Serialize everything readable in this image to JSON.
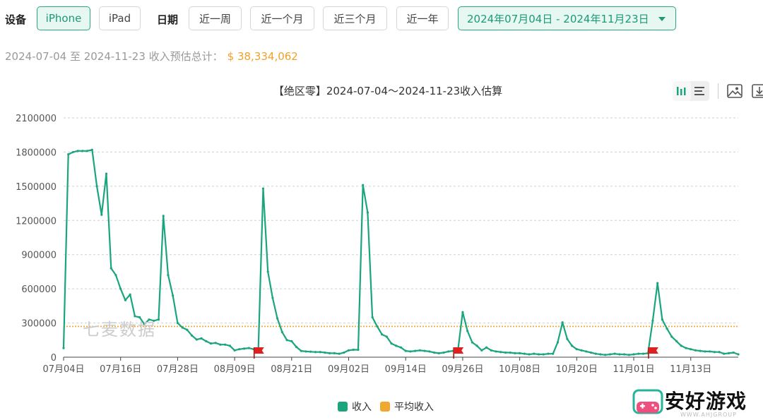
{
  "filters": {
    "device_label": "设备",
    "devices": [
      "iPhone",
      "iPad"
    ],
    "active_device": "iPhone",
    "date_label": "日期",
    "ranges": [
      "近一周",
      "近一个月",
      "近三个月",
      "近一年"
    ],
    "date_range": "2024年07月04日 - 2024年11月23日"
  },
  "summary": {
    "text": "2024-07-04 至 2024-11-23 收入预估总计：",
    "total": "$ 38,334,062"
  },
  "icons": [
    "bar-chart-icon",
    "list-icon",
    "image-icon",
    "download-icon",
    "flag-icon",
    "caret-down-icon"
  ],
  "colors": {
    "accent": "#1aa57f",
    "average": "#f0a830",
    "flag": "#e02020",
    "total": "#f0a12a"
  },
  "watermark": "七麦数据",
  "logo": {
    "text": "安好游戏",
    "sub": "WWW.AHJGROUP"
  },
  "chart_data": {
    "type": "line",
    "title": "【绝区零】2024-07-04～2024-11-23收入估算",
    "xlabel": "",
    "ylabel": "",
    "x_start": "2024-07-04",
    "x_end": "2024-11-23",
    "xticks": [
      "07月04日",
      "07月16日",
      "07月28日",
      "08月09日",
      "08月21日",
      "09月02日",
      "09月14日",
      "09月26日",
      "10月08日",
      "10月20日",
      "11月01日",
      "11月13日"
    ],
    "yticks": [
      "0",
      "300000",
      "600000",
      "900000",
      "1200000",
      "1500000",
      "1800000",
      "2100000"
    ],
    "ylim": [
      0,
      2100000
    ],
    "grid": true,
    "legend_position": "bottom",
    "series": [
      {
        "name": "收入",
        "color": "#1aa57f",
        "points": [
          [
            "2024-07-04",
            80000
          ],
          [
            "2024-07-05",
            1780000
          ],
          [
            "2024-07-06",
            1800000
          ],
          [
            "2024-07-07",
            1810000
          ],
          [
            "2024-07-08",
            1810000
          ],
          [
            "2024-07-09",
            1810000
          ],
          [
            "2024-07-10",
            1820000
          ],
          [
            "2024-07-11",
            1500000
          ],
          [
            "2024-07-12",
            1250000
          ],
          [
            "2024-07-13",
            1610000
          ],
          [
            "2024-07-14",
            780000
          ],
          [
            "2024-07-15",
            720000
          ],
          [
            "2024-07-16",
            600000
          ],
          [
            "2024-07-17",
            500000
          ],
          [
            "2024-07-18",
            550000
          ],
          [
            "2024-07-19",
            360000
          ],
          [
            "2024-07-20",
            350000
          ],
          [
            "2024-07-21",
            290000
          ],
          [
            "2024-07-22",
            330000
          ],
          [
            "2024-07-23",
            320000
          ],
          [
            "2024-07-24",
            330000
          ],
          [
            "2024-07-25",
            1240000
          ],
          [
            "2024-07-26",
            720000
          ],
          [
            "2024-07-27",
            540000
          ],
          [
            "2024-07-28",
            300000
          ],
          [
            "2024-07-29",
            260000
          ],
          [
            "2024-07-30",
            240000
          ],
          [
            "2024-07-31",
            190000
          ],
          [
            "2024-08-01",
            155000
          ],
          [
            "2024-08-02",
            165000
          ],
          [
            "2024-08-03",
            140000
          ],
          [
            "2024-08-04",
            120000
          ],
          [
            "2024-08-05",
            125000
          ],
          [
            "2024-08-06",
            110000
          ],
          [
            "2024-08-07",
            110000
          ],
          [
            "2024-08-08",
            100000
          ],
          [
            "2024-08-09",
            60000
          ],
          [
            "2024-08-10",
            70000
          ],
          [
            "2024-08-11",
            75000
          ],
          [
            "2024-08-12",
            80000
          ],
          [
            "2024-08-13",
            70000
          ],
          [
            "2024-08-14",
            75000
          ],
          [
            "2024-08-15",
            1480000
          ],
          [
            "2024-08-16",
            750000
          ],
          [
            "2024-08-17",
            520000
          ],
          [
            "2024-08-18",
            340000
          ],
          [
            "2024-08-19",
            220000
          ],
          [
            "2024-08-20",
            150000
          ],
          [
            "2024-08-21",
            140000
          ],
          [
            "2024-08-22",
            90000
          ],
          [
            "2024-08-23",
            55000
          ],
          [
            "2024-08-24",
            50000
          ],
          [
            "2024-08-25",
            48000
          ],
          [
            "2024-08-26",
            45000
          ],
          [
            "2024-08-27",
            45000
          ],
          [
            "2024-08-28",
            40000
          ],
          [
            "2024-08-29",
            35000
          ],
          [
            "2024-08-30",
            35000
          ],
          [
            "2024-08-31",
            30000
          ],
          [
            "2024-09-01",
            40000
          ],
          [
            "2024-09-02",
            60000
          ],
          [
            "2024-09-03",
            65000
          ],
          [
            "2024-09-04",
            65000
          ],
          [
            "2024-09-05",
            1510000
          ],
          [
            "2024-09-06",
            1270000
          ],
          [
            "2024-09-07",
            350000
          ],
          [
            "2024-09-08",
            270000
          ],
          [
            "2024-09-09",
            200000
          ],
          [
            "2024-09-10",
            180000
          ],
          [
            "2024-09-11",
            120000
          ],
          [
            "2024-09-12",
            100000
          ],
          [
            "2024-09-13",
            85000
          ],
          [
            "2024-09-14",
            55000
          ],
          [
            "2024-09-15",
            50000
          ],
          [
            "2024-09-16",
            55000
          ],
          [
            "2024-09-17",
            60000
          ],
          [
            "2024-09-18",
            55000
          ],
          [
            "2024-09-19",
            50000
          ],
          [
            "2024-09-20",
            40000
          ],
          [
            "2024-09-21",
            35000
          ],
          [
            "2024-09-22",
            40000
          ],
          [
            "2024-09-23",
            50000
          ],
          [
            "2024-09-24",
            55000
          ],
          [
            "2024-09-25",
            60000
          ],
          [
            "2024-09-26",
            395000
          ],
          [
            "2024-09-27",
            230000
          ],
          [
            "2024-09-28",
            130000
          ],
          [
            "2024-09-29",
            100000
          ],
          [
            "2024-09-30",
            60000
          ],
          [
            "2024-10-01",
            85000
          ],
          [
            "2024-10-02",
            60000
          ],
          [
            "2024-10-03",
            50000
          ],
          [
            "2024-10-04",
            45000
          ],
          [
            "2024-10-05",
            40000
          ],
          [
            "2024-10-06",
            40000
          ],
          [
            "2024-10-07",
            35000
          ],
          [
            "2024-10-08",
            35000
          ],
          [
            "2024-10-09",
            30000
          ],
          [
            "2024-10-10",
            25000
          ],
          [
            "2024-10-11",
            30000
          ],
          [
            "2024-10-12",
            25000
          ],
          [
            "2024-10-13",
            25000
          ],
          [
            "2024-10-14",
            30000
          ],
          [
            "2024-10-15",
            30000
          ],
          [
            "2024-10-16",
            130000
          ],
          [
            "2024-10-17",
            305000
          ],
          [
            "2024-10-18",
            160000
          ],
          [
            "2024-10-19",
            100000
          ],
          [
            "2024-10-20",
            70000
          ],
          [
            "2024-10-21",
            60000
          ],
          [
            "2024-10-22",
            50000
          ],
          [
            "2024-10-23",
            40000
          ],
          [
            "2024-10-24",
            30000
          ],
          [
            "2024-10-25",
            25000
          ],
          [
            "2024-10-26",
            20000
          ],
          [
            "2024-10-27",
            25000
          ],
          [
            "2024-10-28",
            30000
          ],
          [
            "2024-10-29",
            25000
          ],
          [
            "2024-10-30",
            25000
          ],
          [
            "2024-10-31",
            20000
          ],
          [
            "2024-11-01",
            25000
          ],
          [
            "2024-11-02",
            30000
          ],
          [
            "2024-11-03",
            30000
          ],
          [
            "2024-11-04",
            35000
          ],
          [
            "2024-11-05",
            320000
          ],
          [
            "2024-11-06",
            650000
          ],
          [
            "2024-11-07",
            330000
          ],
          [
            "2024-11-08",
            250000
          ],
          [
            "2024-11-09",
            180000
          ],
          [
            "2024-11-10",
            140000
          ],
          [
            "2024-11-11",
            100000
          ],
          [
            "2024-11-12",
            80000
          ],
          [
            "2024-11-13",
            70000
          ],
          [
            "2024-11-14",
            60000
          ],
          [
            "2024-11-15",
            55000
          ],
          [
            "2024-11-16",
            50000
          ],
          [
            "2024-11-17",
            50000
          ],
          [
            "2024-11-18",
            45000
          ],
          [
            "2024-11-19",
            45000
          ],
          [
            "2024-11-20",
            30000
          ],
          [
            "2024-11-21",
            35000
          ],
          [
            "2024-11-22",
            40000
          ],
          [
            "2024-11-23",
            25000
          ]
        ]
      },
      {
        "name": "平均收入",
        "color": "#f0a830",
        "constant": 270000
      }
    ],
    "markers": [
      {
        "type": "flag",
        "x": "2024-08-14"
      },
      {
        "type": "flag",
        "x": "2024-09-25"
      },
      {
        "type": "flag",
        "x": "2024-11-05"
      }
    ]
  }
}
